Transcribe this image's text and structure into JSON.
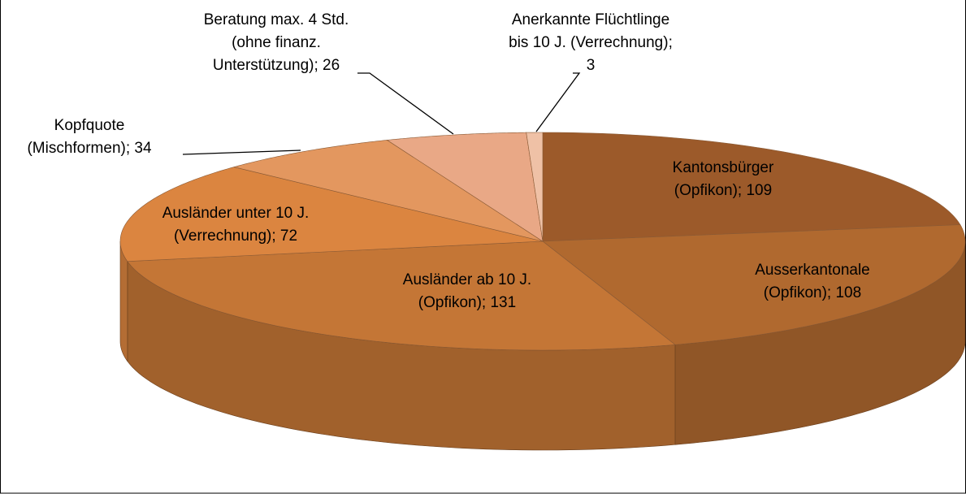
{
  "chart_data": {
    "type": "pie",
    "values": [
      109,
      108,
      131,
      72,
      34,
      26,
      3
    ],
    "value_labels": [
      [
        "Kantonsbürger",
        "(Opfikon); 109"
      ],
      [
        "Ausserkantonale",
        "(Opfikon); 108"
      ],
      [
        "Ausländer ab 10 J.",
        "(Opfikon); 131"
      ],
      [
        "Ausländer unter 10 J.",
        "(Verrechnung); 72"
      ],
      [
        "Kopfquote",
        "(Mischformen); 34"
      ],
      [
        "Beratung max. 4 Std.",
        "(ohne finanz.",
        "Unterstützung); 26"
      ],
      [
        "Anerkannte Flüchtlinge",
        "bis 10 J. (Verrechnung);",
        "3"
      ]
    ],
    "colors": [
      "#9c5a2a",
      "#b0692f",
      "#c47636",
      "#db8540",
      "#e3975f",
      "#e9a886",
      "#efc1a6"
    ]
  }
}
